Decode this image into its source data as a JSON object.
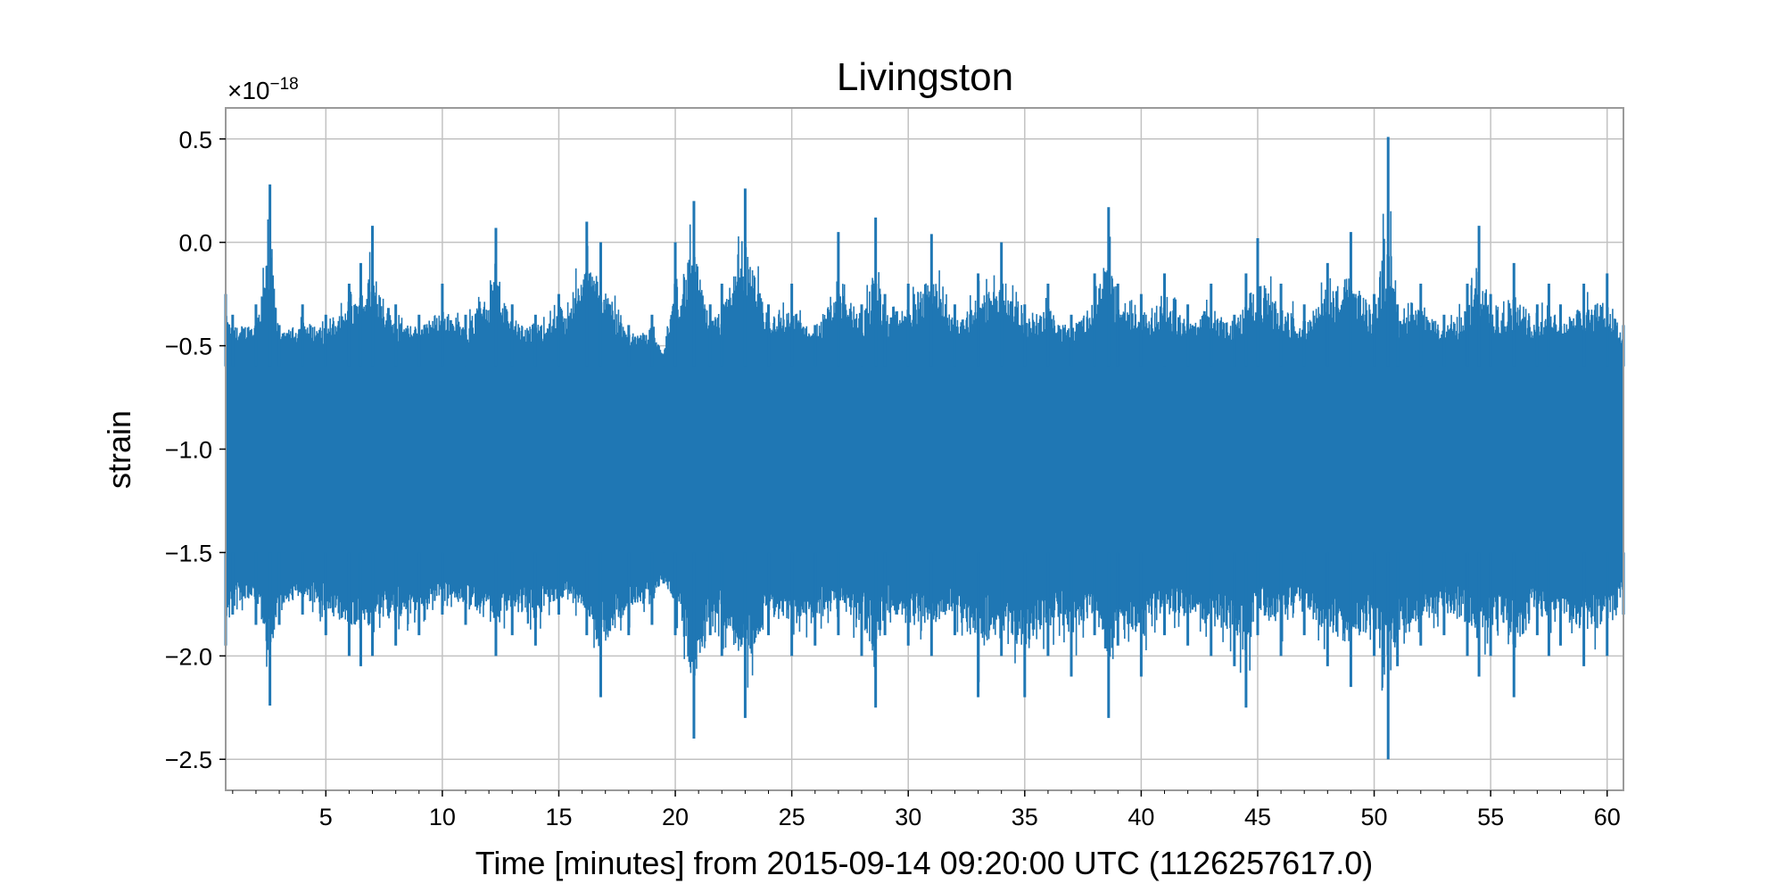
{
  "chart_data": {
    "type": "line",
    "title": "Livingston",
    "xlabel": "Time [minutes] from 2015-09-14 09:20:00 UTC (1126257617.0)",
    "ylabel": "strain",
    "y_offset_text": {
      "base": "×10",
      "exponent": "−18"
    },
    "xlim": [
      0.7,
      60.7
    ],
    "ylim": [
      -2.65,
      0.65
    ],
    "x_ticks": [
      5,
      10,
      15,
      20,
      25,
      30,
      35,
      40,
      45,
      50,
      55,
      60
    ],
    "x_tick_labels": [
      "5",
      "10",
      "15",
      "20",
      "25",
      "30",
      "35",
      "40",
      "45",
      "50",
      "55",
      "60"
    ],
    "y_ticks": [
      0.5,
      0.0,
      -0.5,
      -1.0,
      -1.5,
      -2.0,
      -2.5
    ],
    "y_tick_labels": [
      "0.5",
      "0.0",
      "−0.5",
      "−1.0",
      "−1.5",
      "−2.0",
      "−2.5"
    ],
    "grid": true,
    "legend": "none",
    "series": [
      {
        "color": "#1f77b4",
        "x": [
          0.7,
          1.0,
          2.0,
          2.6,
          3.0,
          4.0,
          5.0,
          6.0,
          6.5,
          7.0,
          8.0,
          9.0,
          10.0,
          11.0,
          12.3,
          13.0,
          14.0,
          15.0,
          16.2,
          16.8,
          18.0,
          19.0,
          19.5,
          20.0,
          20.8,
          21.5,
          22.0,
          23.0,
          24.0,
          25.0,
          26.0,
          27.0,
          28.0,
          28.6,
          29.0,
          30.0,
          31.0,
          32.0,
          33.0,
          34.0,
          35.0,
          36.0,
          37.0,
          38.0,
          38.6,
          39.0,
          40.0,
          41.0,
          42.0,
          43.0,
          44.0,
          44.5,
          45.0,
          46.0,
          47.0,
          48.0,
          49.0,
          50.0,
          50.6,
          51.0,
          52.0,
          53.0,
          54.0,
          54.5,
          55.0,
          56.0,
          57.0,
          57.5,
          58.0,
          59.0,
          60.0,
          60.7
        ],
        "y_max": [
          -0.25,
          -0.35,
          -0.3,
          0.28,
          -0.4,
          -0.3,
          -0.35,
          -0.2,
          -0.1,
          0.08,
          -0.3,
          -0.35,
          -0.2,
          -0.35,
          0.07,
          -0.3,
          -0.35,
          -0.25,
          0.1,
          0.0,
          -0.4,
          -0.35,
          -0.55,
          0.0,
          0.2,
          -0.3,
          -0.2,
          0.26,
          -0.3,
          -0.2,
          -0.4,
          0.05,
          -0.3,
          0.12,
          -0.25,
          -0.2,
          0.04,
          -0.3,
          -0.15,
          0.0,
          -0.3,
          -0.2,
          -0.35,
          -0.15,
          0.17,
          -0.2,
          -0.25,
          -0.15,
          -0.3,
          -0.2,
          -0.35,
          -0.15,
          0.02,
          -0.2,
          -0.3,
          -0.1,
          0.05,
          -0.25,
          0.51,
          -0.3,
          -0.2,
          -0.35,
          -0.2,
          0.08,
          -0.25,
          -0.1,
          -0.3,
          -0.2,
          -0.3,
          -0.2,
          -0.15,
          -0.4
        ],
        "y_min": [
          -1.95,
          -1.8,
          -1.85,
          -2.24,
          -1.85,
          -1.8,
          -1.9,
          -2.0,
          -2.05,
          -2.0,
          -1.95,
          -1.9,
          -1.8,
          -1.85,
          -2.0,
          -1.9,
          -1.95,
          -1.8,
          -1.9,
          -2.2,
          -1.9,
          -1.85,
          -1.65,
          -1.9,
          -2.4,
          -1.9,
          -2.0,
          -2.3,
          -1.9,
          -2.0,
          -1.95,
          -1.9,
          -2.0,
          -2.25,
          -1.9,
          -1.95,
          -2.0,
          -1.9,
          -2.2,
          -2.0,
          -2.2,
          -2.0,
          -2.1,
          -1.9,
          -2.3,
          -1.95,
          -2.1,
          -1.9,
          -1.95,
          -2.0,
          -2.05,
          -2.25,
          -1.9,
          -2.0,
          -1.9,
          -2.05,
          -2.15,
          -2.0,
          -2.5,
          -2.05,
          -1.95,
          -1.9,
          -2.0,
          -2.1,
          -2.0,
          -2.2,
          -1.9,
          -2.0,
          -1.95,
          -2.05,
          -2.0,
          -1.8
        ]
      }
    ]
  }
}
